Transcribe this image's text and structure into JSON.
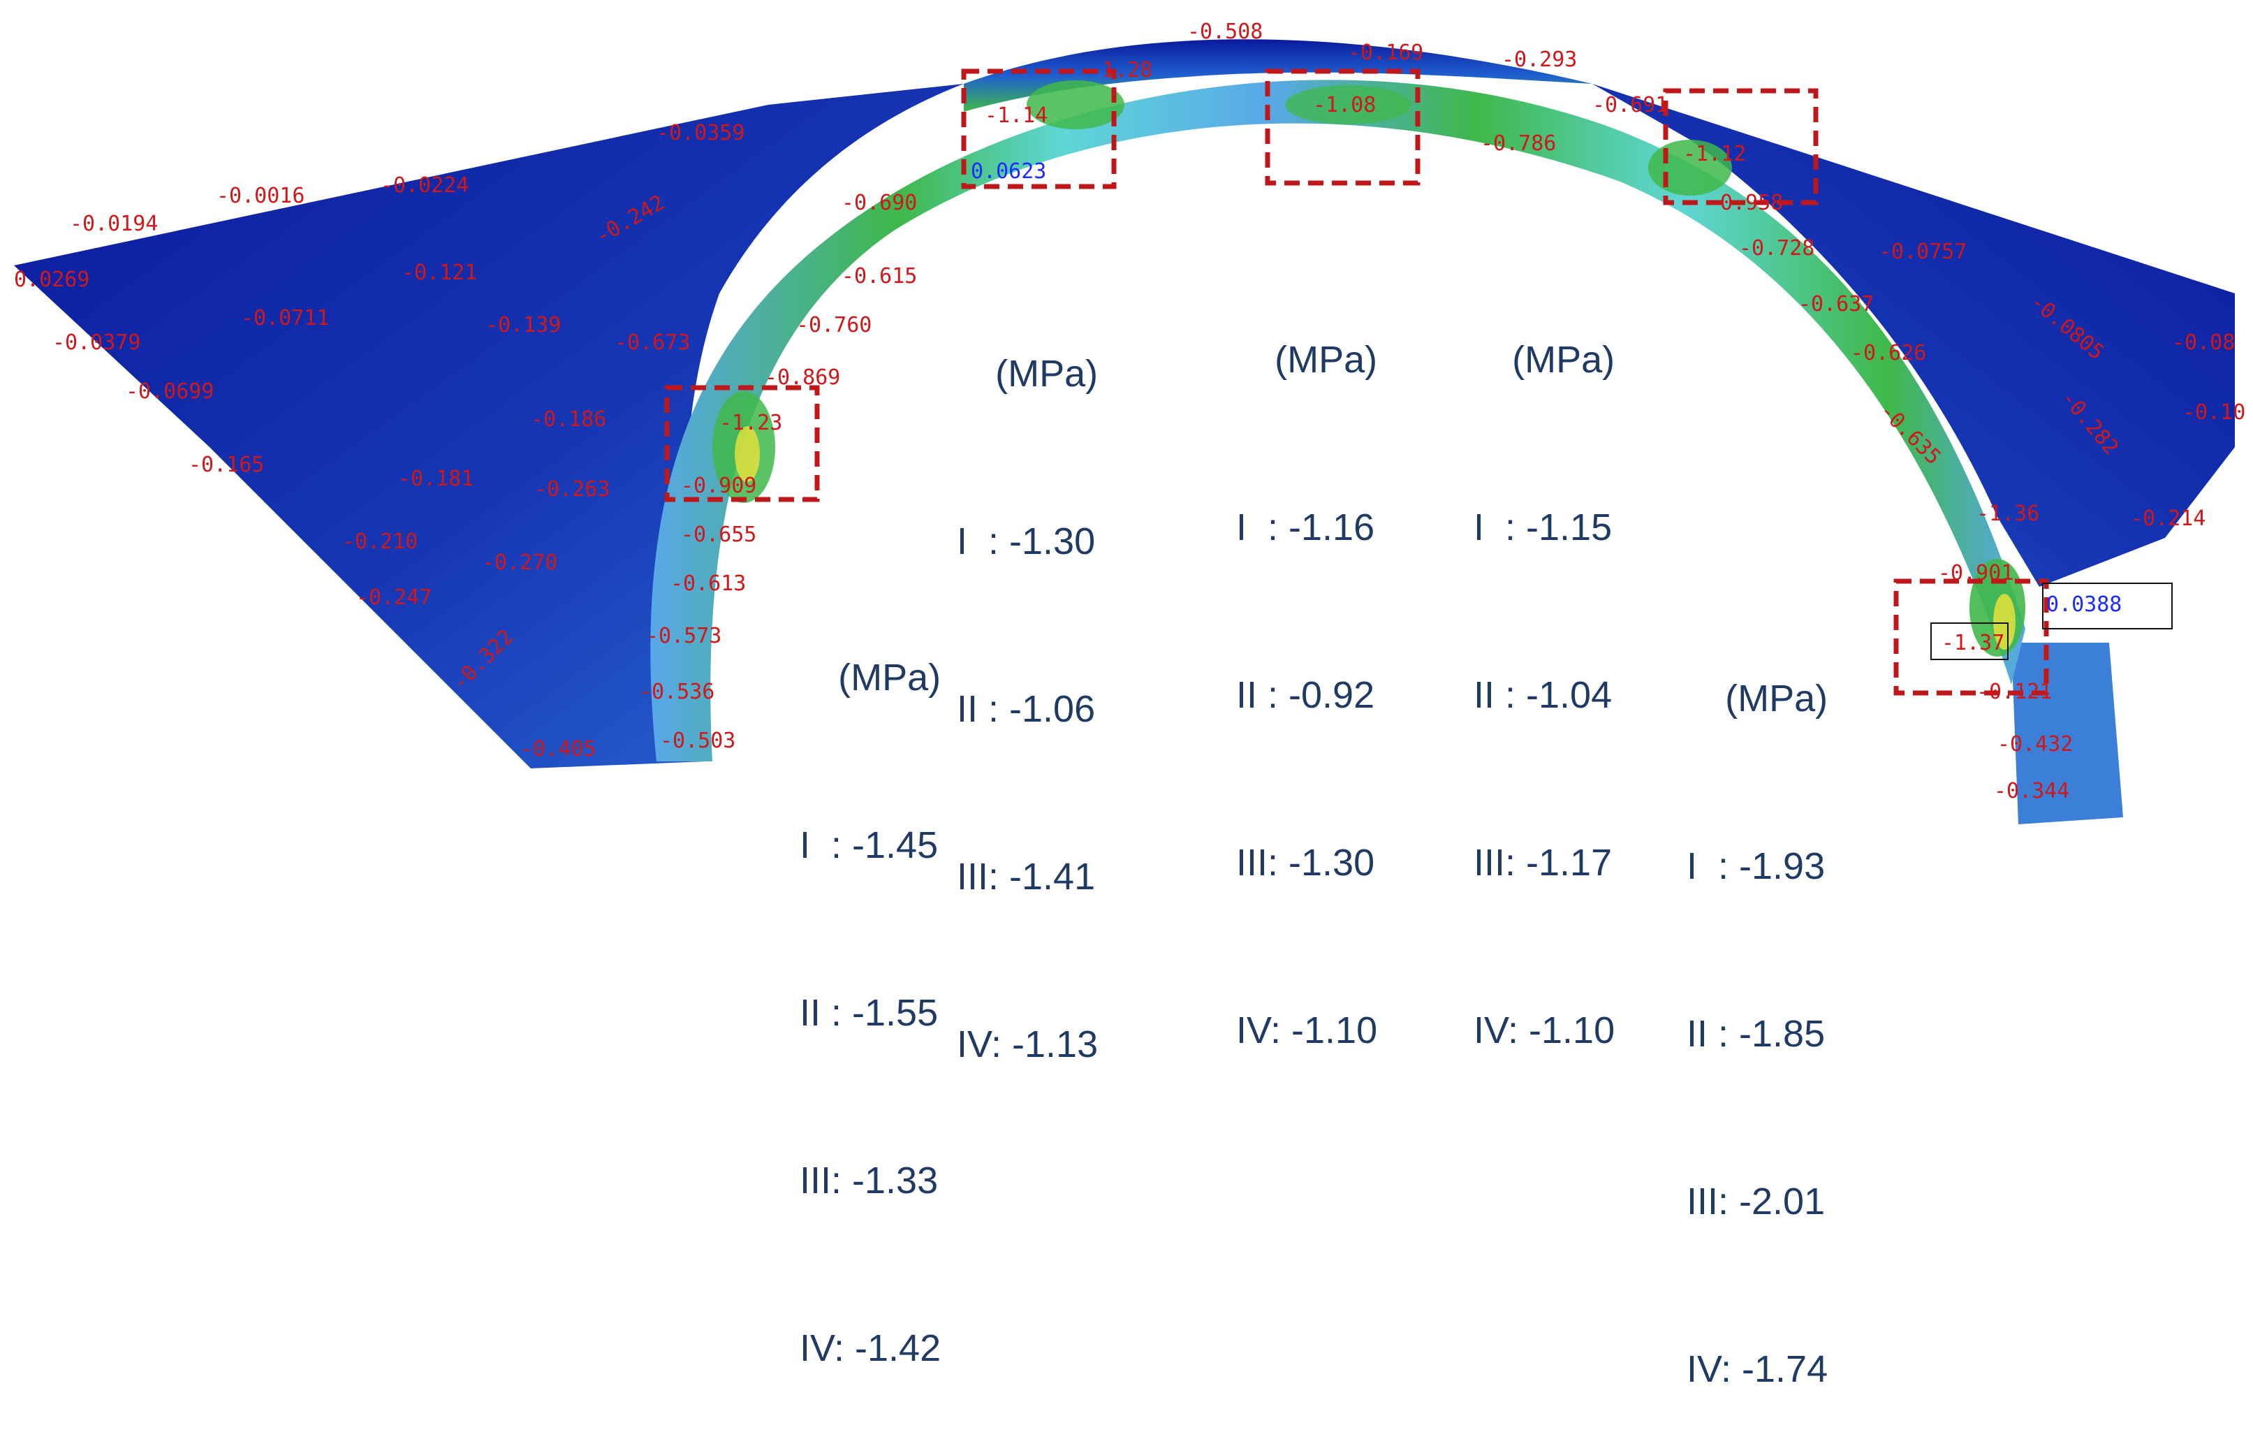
{
  "stress_labels": [
    {
      "text": "-0.0194"
    },
    {
      "text": "-0.0016"
    },
    {
      "text": "-0.0224"
    },
    {
      "text": "-0.0359"
    },
    {
      "text": "0.0269"
    },
    {
      "text": "-0.0379"
    },
    {
      "text": "-0.0711"
    },
    {
      "text": "-0.121"
    },
    {
      "text": "-0.242"
    },
    {
      "text": "-0.139"
    },
    {
      "text": "-0.673"
    },
    {
      "text": "-0.0699"
    },
    {
      "text": "-0.165"
    },
    {
      "text": "-0.186"
    },
    {
      "text": "-0.181"
    },
    {
      "text": "-0.263"
    },
    {
      "text": "-0.210"
    },
    {
      "text": "-0.270"
    },
    {
      "text": "-0.247"
    },
    {
      "text": "-0.322"
    },
    {
      "text": "-0.405"
    },
    {
      "text": "-0.503"
    },
    {
      "text": "-0.536"
    },
    {
      "text": "-0.573"
    },
    {
      "text": "-0.613"
    },
    {
      "text": "-0.655"
    },
    {
      "text": "-0.909"
    },
    {
      "text": "-1.23"
    },
    {
      "text": "-0.869"
    },
    {
      "text": "-0.760"
    },
    {
      "text": "-0.615"
    },
    {
      "text": "-0.690"
    },
    {
      "text": "-1.14"
    },
    {
      "text": "-1.28"
    },
    {
      "text": "-0.508"
    },
    {
      "text": "-0.169"
    },
    {
      "text": "-0.293"
    },
    {
      "text": "-1.08"
    },
    {
      "text": "-0.786"
    },
    {
      "text": "-0.691"
    },
    {
      "text": "-1.12"
    },
    {
      "text": "-0.958"
    },
    {
      "text": "-0.728"
    },
    {
      "text": "-0.0757"
    },
    {
      "text": "-0.637"
    },
    {
      "text": "-0.0805"
    },
    {
      "text": "-0.08"
    },
    {
      "text": "-0.626"
    },
    {
      "text": "-0.10"
    },
    {
      "text": "-0.282"
    },
    {
      "text": "-0.635"
    },
    {
      "text": "-1.36"
    },
    {
      "text": "-0.214"
    },
    {
      "text": "-0.901"
    },
    {
      "text": "-1.37"
    },
    {
      "text": "-0.121"
    },
    {
      "text": "-0.432"
    },
    {
      "text": "-0.344"
    }
  ],
  "blue_labels": [
    {
      "text": "0.0623"
    },
    {
      "text": "0.0388"
    }
  ],
  "annotations": [
    {
      "unit": "(MPa)",
      "lines": [
        "I  : -1.45",
        "II : -1.55",
        "III: -1.33",
        "IV: -1.42"
      ]
    },
    {
      "unit": "(MPa)",
      "lines": [
        "I  : -1.30",
        "II : -1.06",
        "III: -1.41",
        "IV: -1.13"
      ]
    },
    {
      "unit": "(MPa)",
      "lines": [
        "I  : -1.16",
        "II : -0.92",
        "III: -1.30",
        "IV: -1.10"
      ]
    },
    {
      "unit": "(MPa)",
      "lines": [
        "I  : -1.15",
        "II : -1.04",
        "III: -1.17",
        "IV: -1.10"
      ]
    },
    {
      "unit": "(MPa)",
      "lines": [
        "I  : -1.93",
        "II : -1.85",
        "III: -2.01",
        "IV: -1.74"
      ]
    }
  ],
  "colors": {
    "deep_blue": "#0a1a9c",
    "mid_blue": "#1f5fd0",
    "light_blue": "#58a8e8",
    "cyan": "#5fd6d6",
    "green": "#3fb84a",
    "yellow": "#e8e23a",
    "label_red": "#d0181a",
    "box_red": "#c0171b",
    "annotation_text": "#1f3a64"
  }
}
